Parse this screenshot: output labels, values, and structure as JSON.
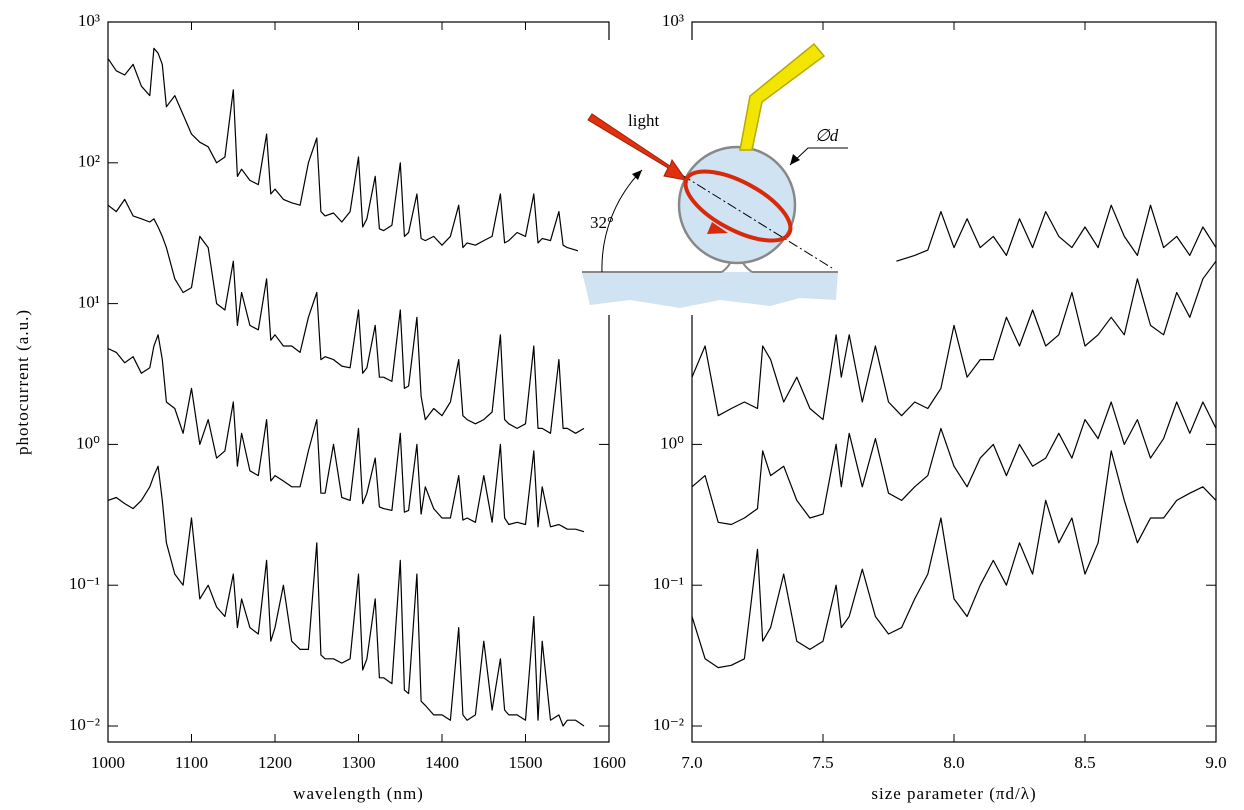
{
  "chart_data": [
    {
      "type": "line",
      "xlabel": "wavelength (nm)",
      "ylabel": "photocurrent (a.u.)",
      "log_y": true,
      "xlim": [
        1000,
        1600
      ],
      "xticks": [
        1000,
        1100,
        1200,
        1300,
        1400,
        1500,
        1600
      ],
      "ylim": [
        0.0077,
        1000
      ],
      "yticks": [
        {
          "value": 1000,
          "label": "10³"
        },
        {
          "value": 100,
          "label": "10²"
        },
        {
          "value": 10,
          "label": "10¹"
        },
        {
          "value": 1,
          "label": "10⁰"
        },
        {
          "value": 0.1,
          "label": "10⁻¹"
        },
        {
          "value": 0.01,
          "label": "10⁻²"
        }
      ],
      "x": [
        1000,
        1010,
        1020,
        1030,
        1040,
        1050,
        1055,
        1060,
        1065,
        1070,
        1080,
        1090,
        1100,
        1110,
        1120,
        1130,
        1140,
        1150,
        1155,
        1160,
        1170,
        1180,
        1190,
        1195,
        1200,
        1210,
        1220,
        1230,
        1240,
        1250,
        1255,
        1260,
        1270,
        1280,
        1290,
        1300,
        1305,
        1310,
        1320,
        1325,
        1330,
        1340,
        1350,
        1355,
        1360,
        1370,
        1375,
        1380,
        1390,
        1400,
        1410,
        1420,
        1425,
        1430,
        1440,
        1450,
        1460,
        1470,
        1475,
        1480,
        1490,
        1500,
        1510,
        1515,
        1520,
        1530,
        1540,
        1545,
        1550,
        1560,
        1570
      ],
      "series": [
        {
          "color": "#000000",
          "values": [
            550,
            450,
            420,
            500,
            350,
            300,
            650,
            600,
            500,
            250,
            300,
            220,
            160,
            140,
            130,
            100,
            110,
            330,
            80,
            90,
            75,
            70,
            160,
            60,
            65,
            55,
            52,
            50,
            100,
            150,
            45,
            42,
            44,
            38,
            45,
            110,
            35,
            40,
            80,
            34,
            33,
            36,
            100,
            30,
            32,
            60,
            29,
            28,
            30,
            26,
            30,
            50,
            25,
            27,
            26,
            28,
            30,
            60,
            27,
            28,
            32,
            30,
            60,
            27,
            29,
            28,
            45,
            26,
            25,
            24,
            23
          ]
        },
        {
          "color": "#000000",
          "values": [
            50,
            45,
            55,
            42,
            40,
            38,
            40,
            35,
            30,
            25,
            15,
            12,
            13,
            30,
            25,
            10,
            9,
            20,
            7,
            12,
            7,
            6.5,
            15,
            5.5,
            6,
            5,
            5,
            4.5,
            8,
            12,
            4,
            4.2,
            4,
            3.6,
            3.5,
            9,
            3.2,
            3.5,
            7,
            3.0,
            3,
            2.8,
            9,
            2.5,
            2.6,
            8,
            2.2,
            1.5,
            1.8,
            1.6,
            2,
            4,
            1.6,
            1.5,
            1.4,
            1.5,
            1.7,
            6,
            1.5,
            1.4,
            1.3,
            1.4,
            5,
            1.3,
            1.3,
            1.2,
            4,
            1.3,
            1.3,
            1.2,
            1.3
          ]
        },
        {
          "color": "#000000",
          "values": [
            4.8,
            4.5,
            3.8,
            4.2,
            3.2,
            3.5,
            5,
            6,
            4,
            2,
            1.8,
            1.2,
            2.5,
            1,
            1.5,
            0.8,
            0.9,
            2,
            0.7,
            1.2,
            0.65,
            0.6,
            1.5,
            0.55,
            0.6,
            0.55,
            0.5,
            0.5,
            0.9,
            1.5,
            0.45,
            0.45,
            1,
            0.42,
            0.4,
            1.3,
            0.38,
            0.45,
            0.8,
            0.36,
            0.35,
            0.34,
            1.2,
            0.33,
            0.34,
            1,
            0.32,
            0.5,
            0.35,
            0.3,
            0.3,
            0.6,
            0.29,
            0.3,
            0.28,
            0.6,
            0.28,
            1,
            0.3,
            0.27,
            0.28,
            0.27,
            0.9,
            0.26,
            0.5,
            0.26,
            0.27,
            0.26,
            0.25,
            0.25,
            0.24
          ]
        },
        {
          "color": "#000000",
          "values": [
            0.4,
            0.42,
            0.38,
            0.35,
            0.4,
            0.5,
            0.6,
            0.7,
            0.4,
            0.2,
            0.12,
            0.1,
            0.3,
            0.08,
            0.1,
            0.07,
            0.06,
            0.12,
            0.05,
            0.08,
            0.05,
            0.045,
            0.15,
            0.04,
            0.05,
            0.1,
            0.04,
            0.035,
            0.035,
            0.2,
            0.032,
            0.03,
            0.03,
            0.028,
            0.03,
            0.12,
            0.025,
            0.03,
            0.08,
            0.022,
            0.022,
            0.02,
            0.15,
            0.018,
            0.017,
            0.12,
            0.015,
            0.014,
            0.012,
            0.012,
            0.011,
            0.05,
            0.012,
            0.011,
            0.012,
            0.04,
            0.013,
            0.03,
            0.013,
            0.012,
            0.012,
            0.011,
            0.06,
            0.011,
            0.04,
            0.011,
            0.012,
            0.01,
            0.011,
            0.011,
            0.01
          ]
        }
      ]
    },
    {
      "type": "line",
      "xlabel": "size parameter (πd/λ)",
      "log_y": true,
      "xlim": [
        7,
        9
      ],
      "xticks": [
        {
          "value": 7,
          "label": "7.0"
        },
        {
          "value": 7.5,
          "label": "7.5"
        },
        {
          "value": 8,
          "label": "8.0"
        },
        {
          "value": 8.5,
          "label": "8.5"
        },
        {
          "value": 9,
          "label": "9.0"
        }
      ],
      "ylim": [
        0.0077,
        1000
      ],
      "yticks": [
        {
          "value": 1000,
          "label": "10³"
        },
        {
          "value": 1,
          "label": "10⁰"
        },
        {
          "value": 0.1,
          "label": "10⁻¹"
        },
        {
          "value": 0.01,
          "label": "10⁻²"
        }
      ],
      "series": [
        {
          "color": "#000000",
          "x": [
            7.78,
            7.85,
            7.9,
            7.95,
            8.0,
            8.05,
            8.1,
            8.15,
            8.2,
            8.25,
            8.3,
            8.35,
            8.4,
            8.45,
            8.5,
            8.55,
            8.6,
            8.65,
            8.7,
            8.75,
            8.8,
            8.85,
            8.9,
            8.95,
            9.0
          ],
          "values": [
            20,
            22,
            24,
            45,
            25,
            40,
            25,
            30,
            22,
            40,
            25,
            45,
            30,
            25,
            35,
            25,
            50,
            30,
            22,
            50,
            25,
            30,
            22,
            35,
            25
          ]
        },
        {
          "color": "#000000",
          "x": [
            7.0,
            7.05,
            7.1,
            7.15,
            7.2,
            7.25,
            7.27,
            7.3,
            7.35,
            7.4,
            7.45,
            7.5,
            7.55,
            7.57,
            7.6,
            7.65,
            7.7,
            7.75,
            7.8,
            7.85,
            7.9,
            7.95,
            8.0,
            8.05,
            8.1,
            8.15,
            8.2,
            8.25,
            8.3,
            8.35,
            8.4,
            8.45,
            8.5,
            8.55,
            8.6,
            8.65,
            8.7,
            8.75,
            8.8,
            8.85,
            8.9,
            8.95,
            9.0
          ],
          "values": [
            3,
            5,
            1.6,
            1.8,
            2,
            1.8,
            5,
            4,
            2,
            3,
            1.8,
            1.5,
            6,
            3,
            6,
            2,
            5,
            2,
            1.6,
            2,
            1.8,
            2.5,
            7,
            3,
            4,
            4,
            8,
            5,
            9,
            5,
            6,
            12,
            5,
            6,
            8,
            6,
            15,
            7,
            6,
            12,
            8,
            15,
            20
          ]
        },
        {
          "color": "#000000",
          "x": [
            7.0,
            7.05,
            7.1,
            7.15,
            7.2,
            7.25,
            7.27,
            7.3,
            7.35,
            7.4,
            7.45,
            7.5,
            7.55,
            7.57,
            7.6,
            7.65,
            7.7,
            7.75,
            7.8,
            7.85,
            7.9,
            7.95,
            8.0,
            8.05,
            8.1,
            8.15,
            8.2,
            8.25,
            8.3,
            8.35,
            8.4,
            8.45,
            8.5,
            8.55,
            8.6,
            8.65,
            8.7,
            8.75,
            8.8,
            8.85,
            8.9,
            8.95,
            9.0
          ],
          "values": [
            0.5,
            0.6,
            0.28,
            0.27,
            0.3,
            0.35,
            0.9,
            0.6,
            0.7,
            0.4,
            0.3,
            0.32,
            1,
            0.5,
            1.2,
            0.5,
            1.1,
            0.45,
            0.4,
            0.5,
            0.6,
            1.3,
            0.7,
            0.5,
            0.8,
            1,
            0.6,
            1,
            0.7,
            0.8,
            1.2,
            0.8,
            1.5,
            1.1,
            2,
            1,
            1.5,
            0.8,
            1.1,
            2,
            1.2,
            2,
            1.3
          ]
        },
        {
          "color": "#000000",
          "x": [
            7.0,
            7.05,
            7.1,
            7.15,
            7.2,
            7.25,
            7.27,
            7.3,
            7.35,
            7.4,
            7.45,
            7.5,
            7.55,
            7.57,
            7.6,
            7.65,
            7.7,
            7.75,
            7.8,
            7.85,
            7.9,
            7.95,
            8.0,
            8.05,
            8.1,
            8.15,
            8.2,
            8.25,
            8.3,
            8.35,
            8.4,
            8.45,
            8.5,
            8.55,
            8.6,
            8.65,
            8.7,
            8.75,
            8.8,
            8.85,
            8.9,
            8.95,
            9.0
          ],
          "values": [
            0.06,
            0.03,
            0.026,
            0.027,
            0.03,
            0.18,
            0.04,
            0.05,
            0.12,
            0.04,
            0.035,
            0.04,
            0.1,
            0.05,
            0.06,
            0.13,
            0.06,
            0.045,
            0.05,
            0.08,
            0.12,
            0.3,
            0.08,
            0.06,
            0.1,
            0.15,
            0.1,
            0.2,
            0.12,
            0.4,
            0.2,
            0.3,
            0.12,
            0.2,
            0.9,
            0.4,
            0.2,
            0.3,
            0.3,
            0.4,
            0.45,
            0.5,
            0.4
          ]
        }
      ]
    }
  ],
  "inset": {
    "light": "light",
    "diameter": "∅d",
    "angle": "32°"
  }
}
